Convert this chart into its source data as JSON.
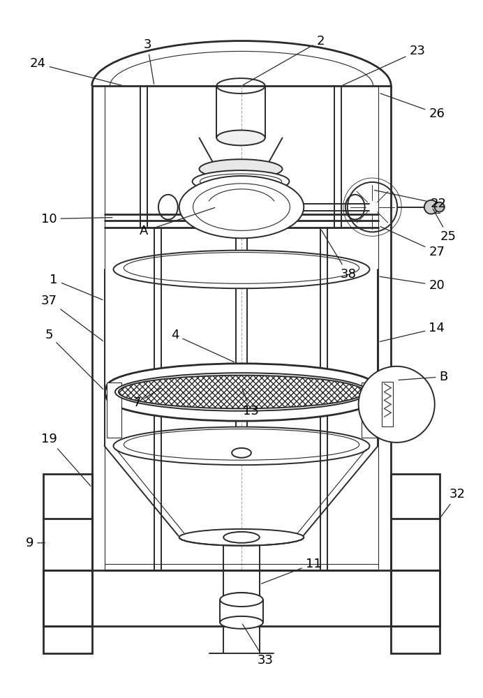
{
  "bg_color": "#ffffff",
  "line_color": "#2a2a2a",
  "label_color": "#000000",
  "figsize": [
    6.92,
    10.0
  ],
  "dpi": 100,
  "lw_thick": 2.0,
  "lw_main": 1.4,
  "lw_thin": 0.8,
  "label_fontsize": 13
}
